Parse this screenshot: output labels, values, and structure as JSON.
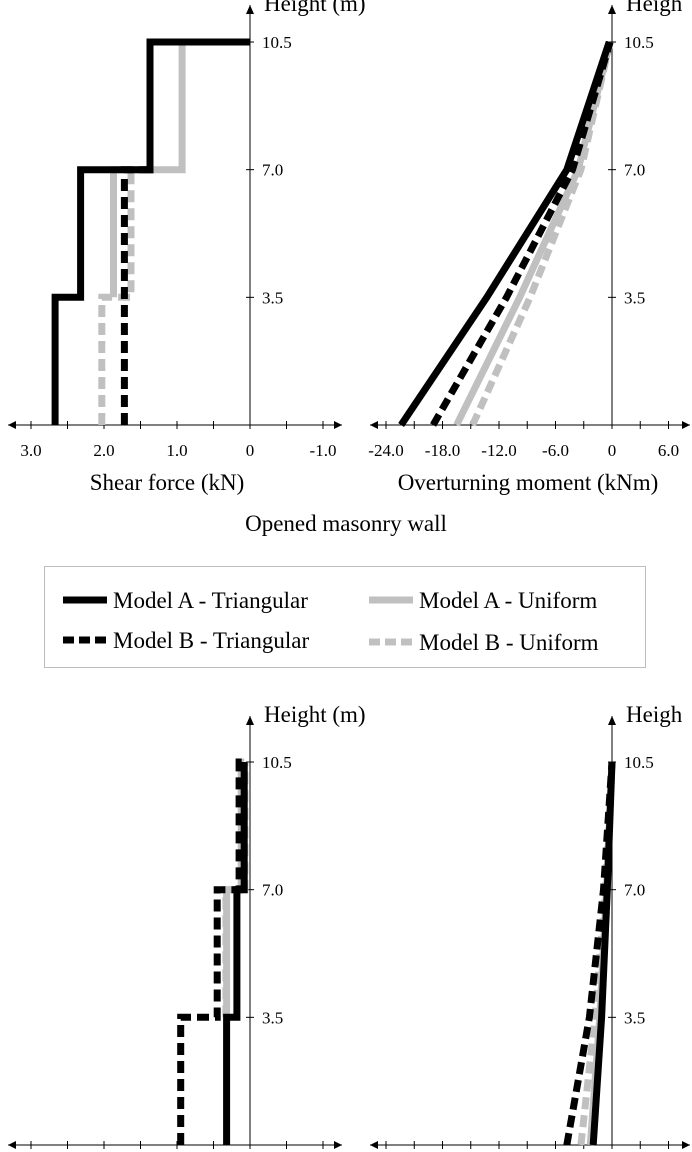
{
  "figure": {
    "section_title": "Opened masonry wall",
    "legend": [
      {
        "label": "Model A - Triangular",
        "color": "#000000",
        "dash": "solid"
      },
      {
        "label": "Model A - Uniform",
        "color": "#c0c0c0",
        "dash": "solid"
      },
      {
        "label": "Model B - Triangular",
        "color": "#000000",
        "dash": "dashed"
      },
      {
        "label": "Model B - Uniform",
        "color": "#c0c0c0",
        "dash": "dashed"
      }
    ]
  },
  "chart_data": [
    {
      "type": "line",
      "id": "shear-top",
      "xlabel": "Shear force (kN)",
      "ylabel": "Height (m)",
      "x_reversed": true,
      "xlim": [
        -1.0,
        3.0
      ],
      "ylim": [
        0,
        10.5
      ],
      "x_ticks": [
        "3.0",
        "2.0",
        "1.0",
        "0",
        "-1.0"
      ],
      "x_tick_values": [
        3.0,
        2.0,
        1.0,
        0,
        -1.0
      ],
      "y_ticks": [
        "10.5",
        "7.0",
        "3.5"
      ],
      "y_tick_values": [
        10.5,
        7.0,
        3.5
      ],
      "series": [
        {
          "name": "Model A - Triangular",
          "color": "#000000",
          "dash": "solid",
          "points": [
            [
              2.67,
              0
            ],
            [
              2.67,
              3.5
            ],
            [
              2.32,
              3.5
            ],
            [
              2.32,
              7.0
            ],
            [
              1.37,
              7.0
            ],
            [
              1.37,
              10.5
            ],
            [
              0,
              10.5
            ]
          ]
        },
        {
          "name": "Model A - Uniform",
          "color": "#c0c0c0",
          "dash": "solid",
          "points": [
            [
              1.87,
              3.5
            ],
            [
              1.87,
              7.0
            ],
            [
              0.93,
              7.0
            ],
            [
              0.93,
              10.5
            ]
          ]
        },
        {
          "name": "Model B - Triangular",
          "color": "#000000",
          "dash": "dashed",
          "points": [
            [
              1.72,
              0
            ],
            [
              1.72,
              7.0
            ],
            [
              1.72,
              7.0
            ],
            [
              1.37,
              7.0
            ],
            [
              1.37,
              10.5
            ]
          ]
        },
        {
          "name": "Model B - Uniform",
          "color": "#c0c0c0",
          "dash": "dashed",
          "points": [
            [
              2.03,
              0
            ],
            [
              2.03,
              3.5
            ],
            [
              1.63,
              3.5
            ],
            [
              1.63,
              7.0
            ]
          ]
        }
      ]
    },
    {
      "type": "line",
      "id": "moment-top",
      "xlabel": "Overturning moment (kNm)",
      "ylabel": "Heigh",
      "xlim": [
        -27.0,
        8.0
      ],
      "ylim": [
        0,
        10.5
      ],
      "x_ticks": [
        "-24.0",
        "-18.0",
        "-12.0",
        "-6.0",
        "0",
        "6.0"
      ],
      "x_tick_values": [
        -24.0,
        -18.0,
        -12.0,
        -6.0,
        0,
        6.0
      ],
      "y_ticks": [
        "10.5",
        "7.0",
        "3.5"
      ],
      "y_tick_values": [
        10.5,
        7.0,
        3.5
      ],
      "series": [
        {
          "name": "Model A - Triangular",
          "color": "#000000",
          "dash": "solid",
          "points": [
            [
              -22.4,
              0
            ],
            [
              -13.3,
              3.5
            ],
            [
              -4.8,
              7.0
            ],
            [
              -0.3,
              10.5
            ]
          ]
        },
        {
          "name": "Model A - Uniform",
          "color": "#c0c0c0",
          "dash": "solid",
          "points": [
            [
              -16.5,
              0
            ],
            [
              -9.8,
              3.5
            ],
            [
              -3.6,
              7.0
            ],
            [
              -0.2,
              10.5
            ]
          ]
        },
        {
          "name": "Model B - Triangular",
          "color": "#000000",
          "dash": "dashed",
          "points": [
            [
              -19.0,
              0
            ],
            [
              -11.2,
              3.5
            ],
            [
              -4.2,
              7.0
            ],
            [
              -0.2,
              10.5
            ]
          ]
        },
        {
          "name": "Model B - Uniform",
          "color": "#c0c0c0",
          "dash": "dashed",
          "points": [
            [
              -14.8,
              0
            ],
            [
              -8.7,
              3.5
            ],
            [
              -3.3,
              7.0
            ],
            [
              -0.2,
              10.5
            ]
          ]
        }
      ]
    },
    {
      "type": "line",
      "id": "shear-bottom",
      "xlabel": "",
      "ylabel": "Height (m)",
      "x_reversed": true,
      "xlim": [
        -1.0,
        3.0
      ],
      "ylim": [
        0,
        10.5
      ],
      "x_ticks": [],
      "y_ticks": [
        "10.5",
        "7.0",
        "3.5"
      ],
      "y_tick_values": [
        10.5,
        7.0,
        3.5
      ],
      "series": [
        {
          "name": "Model A - Triangular",
          "color": "#000000",
          "dash": "solid",
          "points": [
            [
              0.32,
              0
            ],
            [
              0.32,
              3.5
            ],
            [
              0.18,
              3.5
            ],
            [
              0.18,
              7.0
            ],
            [
              0.08,
              7.0
            ],
            [
              0.08,
              10.5
            ]
          ]
        },
        {
          "name": "Model A - Uniform",
          "color": "#c0c0c0",
          "dash": "solid",
          "points": [
            [
              0.32,
              3.5
            ],
            [
              0.32,
              7.0
            ],
            [
              0.12,
              7.0
            ],
            [
              0.12,
              10.5
            ],
            [
              0.08,
              10.5
            ]
          ]
        },
        {
          "name": "Model B - Triangular",
          "color": "#000000",
          "dash": "dashed",
          "points": [
            [
              0.95,
              0
            ],
            [
              0.95,
              3.5
            ],
            [
              0.45,
              3.5
            ],
            [
              0.45,
              7.0
            ],
            [
              0.15,
              7.0
            ],
            [
              0.15,
              10.5
            ],
            [
              0.05,
              10.5
            ]
          ]
        },
        {
          "name": "Model B - Uniform",
          "color": "#c0c0c0",
          "dash": "dashed",
          "points": [
            [
              0.33,
              3.5
            ],
            [
              0.33,
              7.0
            ],
            [
              0.07,
              7.0
            ],
            [
              0.07,
              10.5
            ]
          ]
        }
      ]
    },
    {
      "type": "line",
      "id": "moment-bottom",
      "xlabel": "",
      "ylabel": "Heigh",
      "xlim": [
        -27.0,
        8.0
      ],
      "ylim": [
        0,
        10.5
      ],
      "x_ticks": [],
      "y_ticks": [
        "10.5",
        "7.0",
        "3.5"
      ],
      "y_tick_values": [
        10.5,
        7.0,
        3.5
      ],
      "series": [
        {
          "name": "Model A - Triangular",
          "color": "#000000",
          "dash": "solid",
          "points": [
            [
              -2.0,
              0
            ],
            [
              -1.1,
              3.5
            ],
            [
              -0.5,
              7.0
            ],
            [
              0,
              10.5
            ]
          ]
        },
        {
          "name": "Model A - Uniform",
          "color": "#c0c0c0",
          "dash": "solid",
          "points": [
            [
              -2.3,
              0
            ],
            [
              -1.3,
              3.5
            ],
            [
              -0.6,
              7.0
            ],
            [
              0,
              10.5
            ]
          ]
        },
        {
          "name": "Model B - Triangular",
          "color": "#000000",
          "dash": "dashed",
          "points": [
            [
              -4.8,
              0
            ],
            [
              -2.4,
              3.5
            ],
            [
              -0.9,
              7.0
            ],
            [
              0,
              10.5
            ]
          ]
        },
        {
          "name": "Model B - Uniform",
          "color": "#c0c0c0",
          "dash": "dashed",
          "points": [
            [
              -3.3,
              0
            ],
            [
              -1.8,
              3.5
            ],
            [
              -0.7,
              7.0
            ],
            [
              0,
              10.5
            ]
          ]
        }
      ]
    }
  ]
}
